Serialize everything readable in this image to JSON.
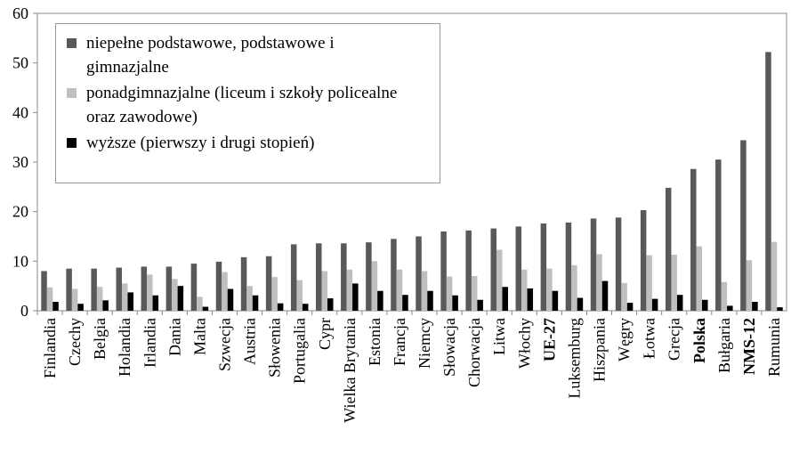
{
  "chart_data": {
    "type": "bar",
    "categories": [
      "Finlandia",
      "Czechy",
      "Belgia",
      "Holandia",
      "Irlandia",
      "Dania",
      "Malta",
      "Szwecja",
      "Austria",
      "Słowenia",
      "Portugalia",
      "Cypr",
      "Wielka Brytania",
      "Estonia",
      "Francja",
      "Niemcy",
      "Słowacja",
      "Chorwacja",
      "Litwa",
      "Włochy",
      "UE-27",
      "Luksemburg",
      "Hiszpania",
      "Węgry",
      "Łotwa",
      "Grecja",
      "Polska",
      "Bułgaria",
      "NMS-12",
      "Rumunia"
    ],
    "bold_categories": [
      20,
      26,
      28
    ],
    "series": [
      {
        "name": "niepełne podstawowe, podstawowe i gimnazjalne",
        "color": "#595959",
        "values": [
          8.0,
          8.5,
          8.5,
          8.7,
          8.9,
          8.9,
          9.5,
          9.9,
          10.8,
          11.0,
          13.4,
          13.6,
          13.6,
          13.8,
          14.5,
          15.0,
          16.0,
          16.2,
          16.6,
          17.0,
          17.6,
          17.8,
          18.6,
          18.8,
          20.3,
          24.8,
          28.6,
          30.5,
          34.4,
          52.2
        ]
      },
      {
        "name": "ponadgimnazjalne (liceum i szkoły policealne oraz zawodowe)",
        "color": "#bfbfbf",
        "values": [
          4.7,
          4.4,
          4.8,
          5.5,
          7.3,
          6.4,
          2.8,
          7.8,
          5.0,
          6.8,
          6.2,
          8.0,
          8.3,
          10.0,
          8.3,
          8.0,
          6.9,
          7.0,
          12.3,
          8.3,
          8.5,
          9.2,
          11.4,
          5.6,
          11.2,
          11.3,
          13.0,
          5.8,
          10.2,
          13.9
        ]
      },
      {
        "name": "wyższe (pierwszy i drugi stopień)",
        "color": "#000000",
        "values": [
          1.8,
          1.4,
          2.1,
          3.7,
          3.1,
          5.0,
          0.8,
          4.4,
          3.1,
          1.5,
          1.4,
          2.5,
          5.5,
          4.0,
          3.2,
          4.0,
          3.1,
          2.2,
          4.8,
          4.5,
          4.0,
          2.6,
          6.0,
          1.6,
          2.4,
          3.2,
          2.2,
          1.0,
          1.8,
          0.7
        ]
      }
    ],
    "ylim": [
      0,
      60
    ],
    "yticks": [
      0,
      10,
      20,
      30,
      40,
      50,
      60
    ],
    "grid": false,
    "legend": "upper left"
  }
}
